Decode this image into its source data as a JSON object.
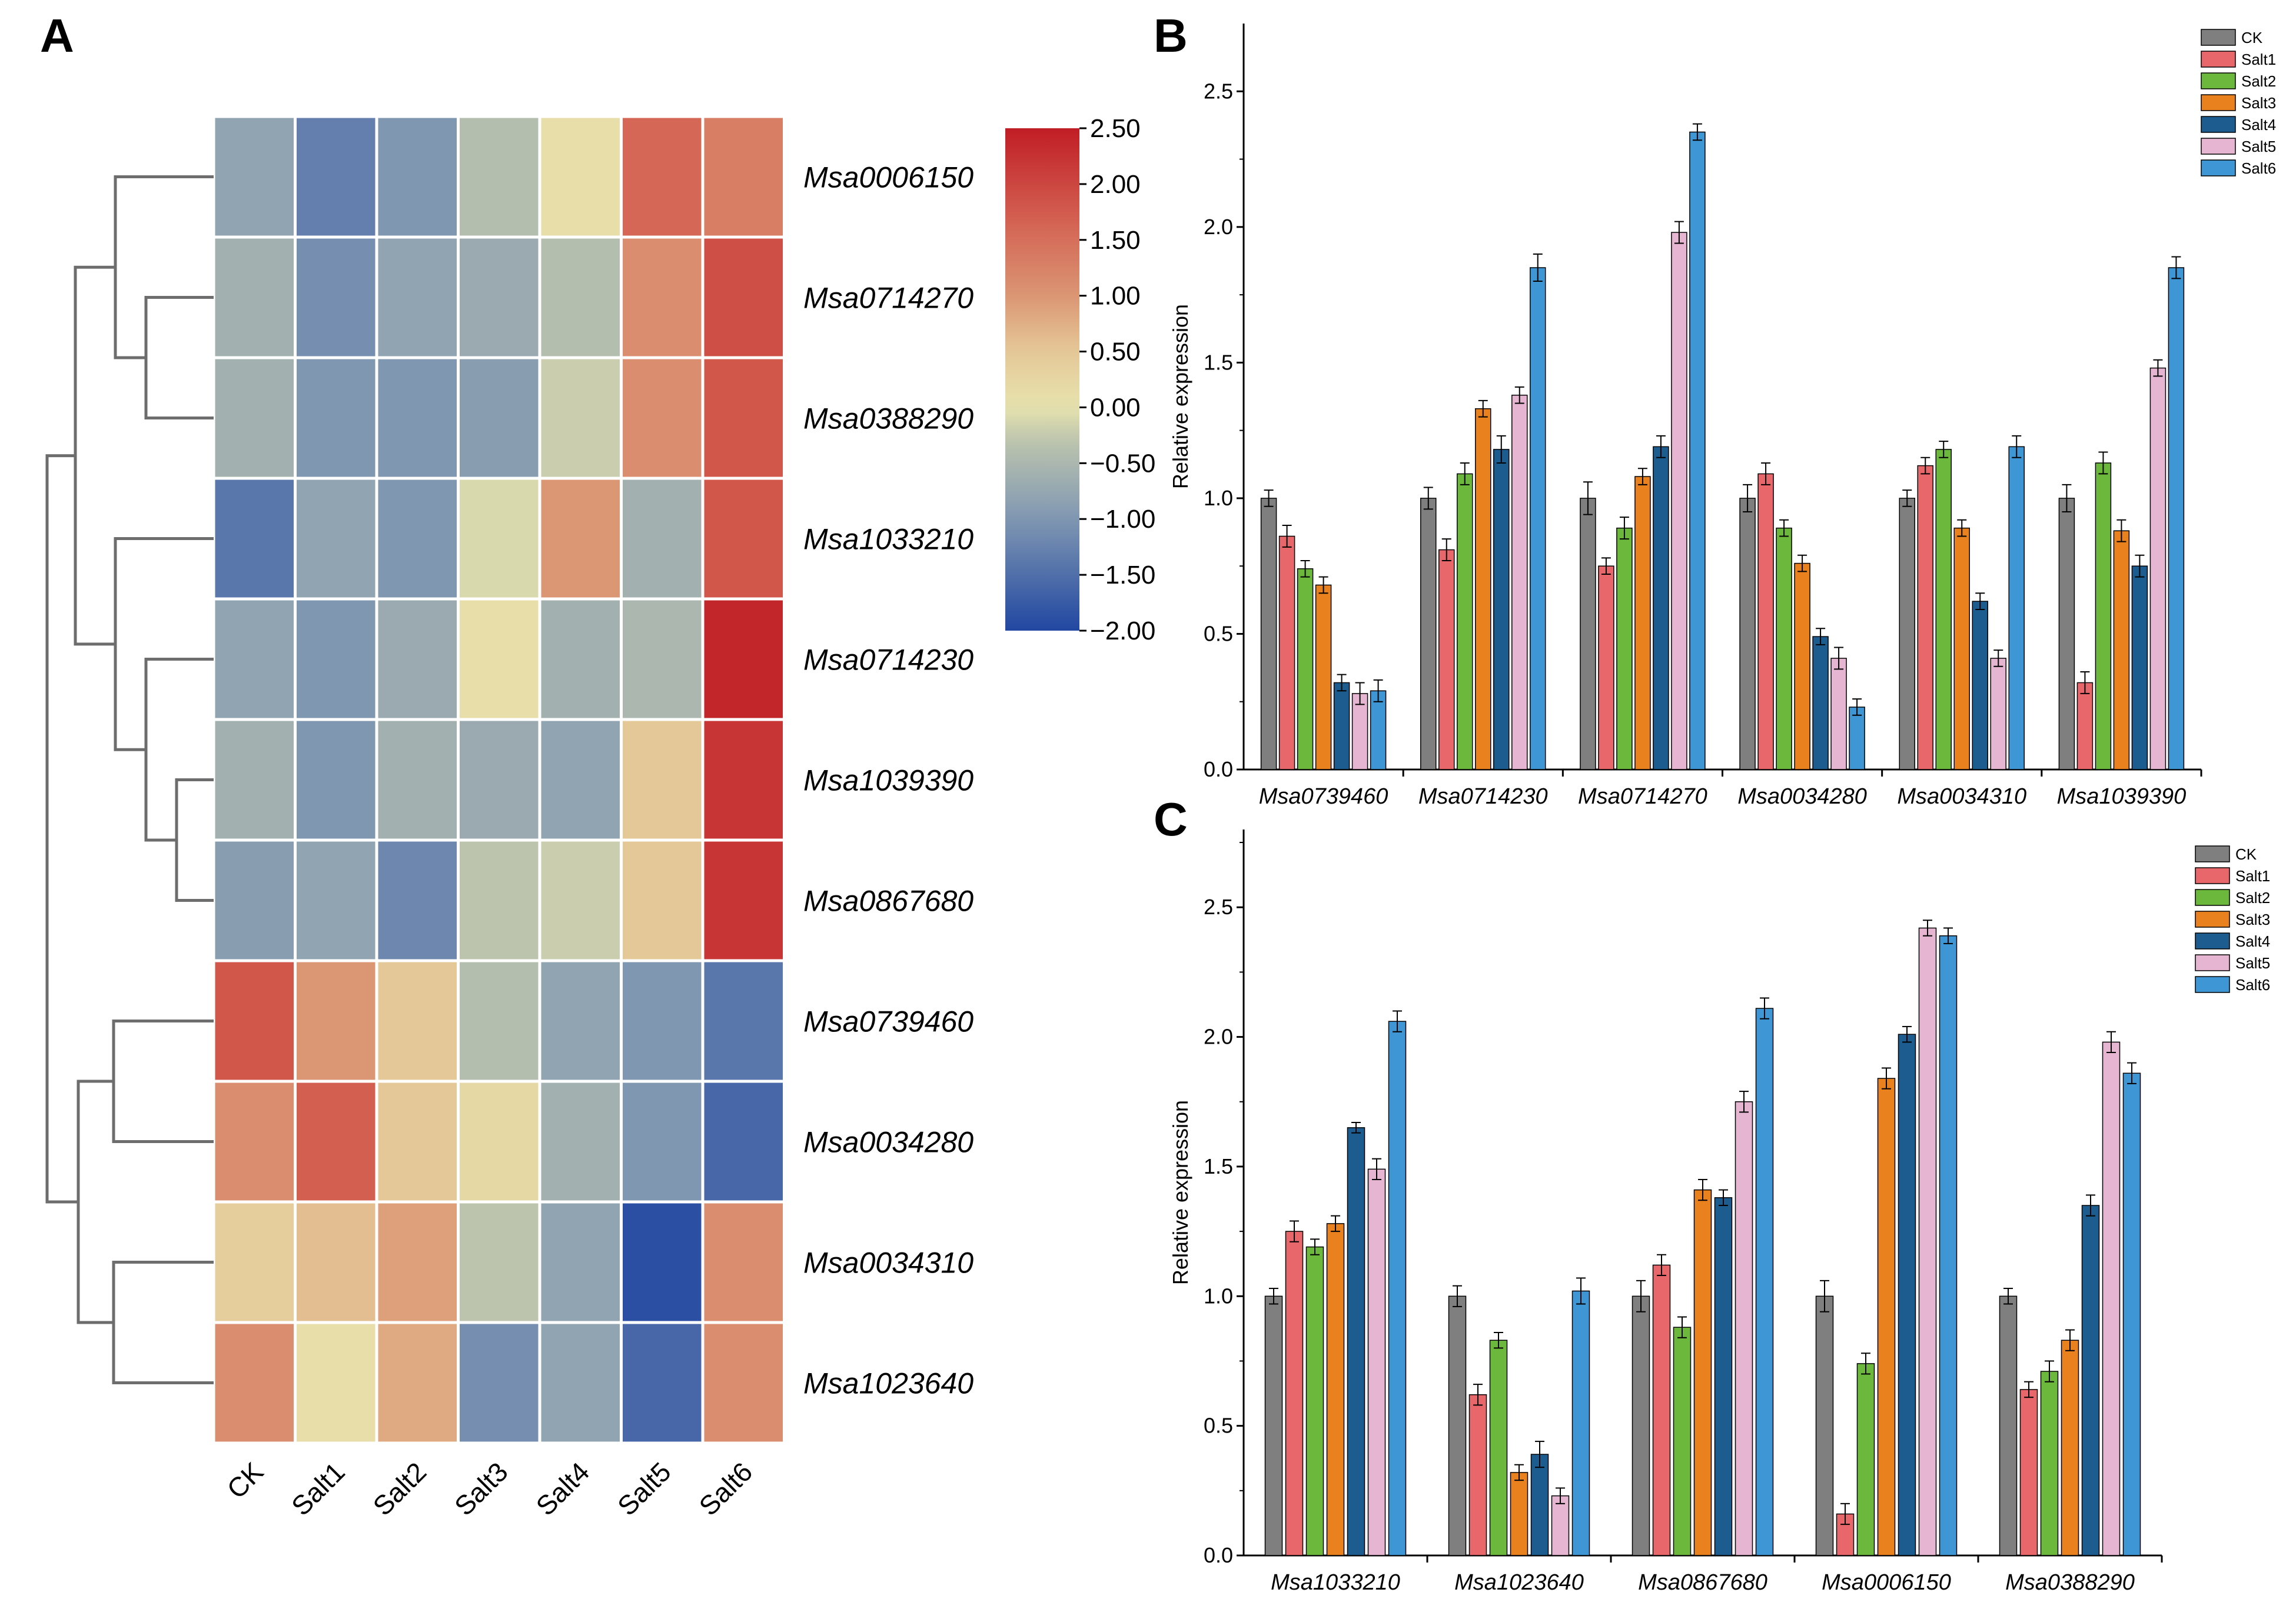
{
  "panels": {
    "a": "A",
    "b": "B",
    "c": "C"
  },
  "colors": {
    "CK": "#7f7f7f",
    "Salt1": "#e8676b",
    "Salt2": "#6cb83c",
    "Salt3": "#e8811e",
    "Salt4": "#1c5c8f",
    "Salt5": "#e5b5d2",
    "Salt6": "#3f96d4"
  },
  "heatmap": {
    "genes": [
      "Msa0006150",
      "Msa0714270",
      "Msa0388290",
      "Msa1033210",
      "Msa0714230",
      "Msa1039390",
      "Msa0867680",
      "Msa0739460",
      "Msa0034280",
      "Msa0034310",
      "Msa1023640"
    ],
    "conditions": [
      "CK",
      "Salt1",
      "Salt2",
      "Salt3",
      "Salt4",
      "Salt5",
      "Salt6"
    ],
    "values": [
      [
        -0.8,
        -1.3,
        -1.0,
        -0.4,
        0.1,
        1.6,
        1.3
      ],
      [
        -0.6,
        -1.1,
        -0.8,
        -0.7,
        -0.4,
        1.1,
        1.9
      ],
      [
        -0.6,
        -1.0,
        -1.0,
        -0.9,
        -0.2,
        1.1,
        1.8
      ],
      [
        -1.4,
        -0.8,
        -1.0,
        -0.1,
        1.0,
        -0.6,
        1.8
      ],
      [
        -0.8,
        -1.0,
        -0.7,
        0.1,
        -0.6,
        -0.5,
        2.4
      ],
      [
        -0.6,
        -1.0,
        -0.6,
        -0.7,
        -0.8,
        0.5,
        2.2
      ],
      [
        -0.9,
        -0.8,
        -1.2,
        -0.3,
        -0.2,
        0.5,
        2.2
      ],
      [
        1.8,
        1.0,
        0.5,
        -0.4,
        -0.8,
        -1.0,
        -1.4
      ],
      [
        1.1,
        1.7,
        0.5,
        0.2,
        -0.6,
        -1.0,
        -1.6
      ],
      [
        0.4,
        0.6,
        0.9,
        -0.3,
        -0.8,
        -1.9,
        1.1
      ],
      [
        1.1,
        0.1,
        0.8,
        -1.1,
        -0.8,
        -1.6,
        1.1
      ]
    ],
    "colorbar": {
      "min": -2.0,
      "max": 2.5,
      "ticks": [
        "2.50",
        "2.00",
        "1.50",
        "1.00",
        "0.50",
        "0.00",
        "−0.50",
        "−1.00",
        "−1.50",
        "−2.00"
      ]
    }
  },
  "chart_data": [
    {
      "type": "bar",
      "panel": "B",
      "categories": [
        "Msa0739460",
        "Msa0714230",
        "Msa0714270",
        "Msa0034280",
        "Msa0034310",
        "Msa1039390"
      ],
      "ylabel": "Relative expression",
      "ylim": [
        0,
        2.75
      ],
      "yticks": [
        "0.0",
        "0.5",
        "1.0",
        "1.5",
        "2.0",
        "2.5"
      ],
      "legend": "top-right",
      "series": [
        {
          "name": "CK",
          "values": [
            1.0,
            1.0,
            1.0,
            1.0,
            1.0,
            1.0
          ],
          "err": [
            0.03,
            0.04,
            0.06,
            0.05,
            0.03,
            0.05
          ]
        },
        {
          "name": "Salt1",
          "values": [
            0.86,
            0.81,
            0.75,
            1.09,
            1.12,
            0.32
          ],
          "err": [
            0.04,
            0.04,
            0.03,
            0.04,
            0.03,
            0.04
          ]
        },
        {
          "name": "Salt2",
          "values": [
            0.74,
            1.09,
            0.89,
            0.89,
            1.18,
            1.13
          ],
          "err": [
            0.03,
            0.04,
            0.04,
            0.03,
            0.03,
            0.04
          ]
        },
        {
          "name": "Salt3",
          "values": [
            0.68,
            1.33,
            1.08,
            0.76,
            0.89,
            0.88
          ],
          "err": [
            0.03,
            0.03,
            0.03,
            0.03,
            0.03,
            0.04
          ]
        },
        {
          "name": "Salt4",
          "values": [
            0.32,
            1.18,
            1.19,
            0.49,
            0.62,
            0.75
          ],
          "err": [
            0.03,
            0.05,
            0.04,
            0.03,
            0.03,
            0.04
          ]
        },
        {
          "name": "Salt5",
          "values": [
            0.28,
            1.38,
            1.98,
            0.41,
            0.41,
            1.48
          ],
          "err": [
            0.04,
            0.03,
            0.04,
            0.04,
            0.03,
            0.03
          ]
        },
        {
          "name": "Salt6",
          "values": [
            0.29,
            1.85,
            2.35,
            0.23,
            1.19,
            1.85
          ],
          "err": [
            0.04,
            0.05,
            0.03,
            0.03,
            0.04,
            0.04
          ]
        }
      ]
    },
    {
      "type": "bar",
      "panel": "C",
      "categories": [
        "Msa1033210",
        "Msa1023640",
        "Msa0867680",
        "Msa0006150",
        "Msa0388290"
      ],
      "ylabel": "Relative expression",
      "ylim": [
        0,
        2.8
      ],
      "yticks": [
        "0.0",
        "0.5",
        "1.0",
        "1.5",
        "2.0",
        "2.5"
      ],
      "legend": "top-right",
      "series": [
        {
          "name": "CK",
          "values": [
            1.0,
            1.0,
            1.0,
            1.0,
            1.0
          ],
          "err": [
            0.03,
            0.04,
            0.06,
            0.06,
            0.03
          ]
        },
        {
          "name": "Salt1",
          "values": [
            1.25,
            0.62,
            1.12,
            0.16,
            0.64
          ],
          "err": [
            0.04,
            0.04,
            0.04,
            0.04,
            0.03
          ]
        },
        {
          "name": "Salt2",
          "values": [
            1.19,
            0.83,
            0.88,
            0.74,
            0.71
          ],
          "err": [
            0.03,
            0.03,
            0.04,
            0.04,
            0.04
          ]
        },
        {
          "name": "Salt3",
          "values": [
            1.28,
            0.32,
            1.41,
            1.84,
            0.83
          ],
          "err": [
            0.03,
            0.03,
            0.04,
            0.04,
            0.04
          ]
        },
        {
          "name": "Salt4",
          "values": [
            1.65,
            0.39,
            1.38,
            2.01,
            1.35
          ],
          "err": [
            0.02,
            0.05,
            0.03,
            0.03,
            0.04
          ]
        },
        {
          "name": "Salt5",
          "values": [
            1.49,
            0.23,
            1.75,
            2.42,
            1.98
          ],
          "err": [
            0.04,
            0.03,
            0.04,
            0.03,
            0.04
          ]
        },
        {
          "name": "Salt6",
          "values": [
            2.06,
            1.02,
            2.11,
            2.39,
            1.86
          ],
          "err": [
            0.04,
            0.05,
            0.04,
            0.03,
            0.04
          ]
        }
      ]
    }
  ]
}
